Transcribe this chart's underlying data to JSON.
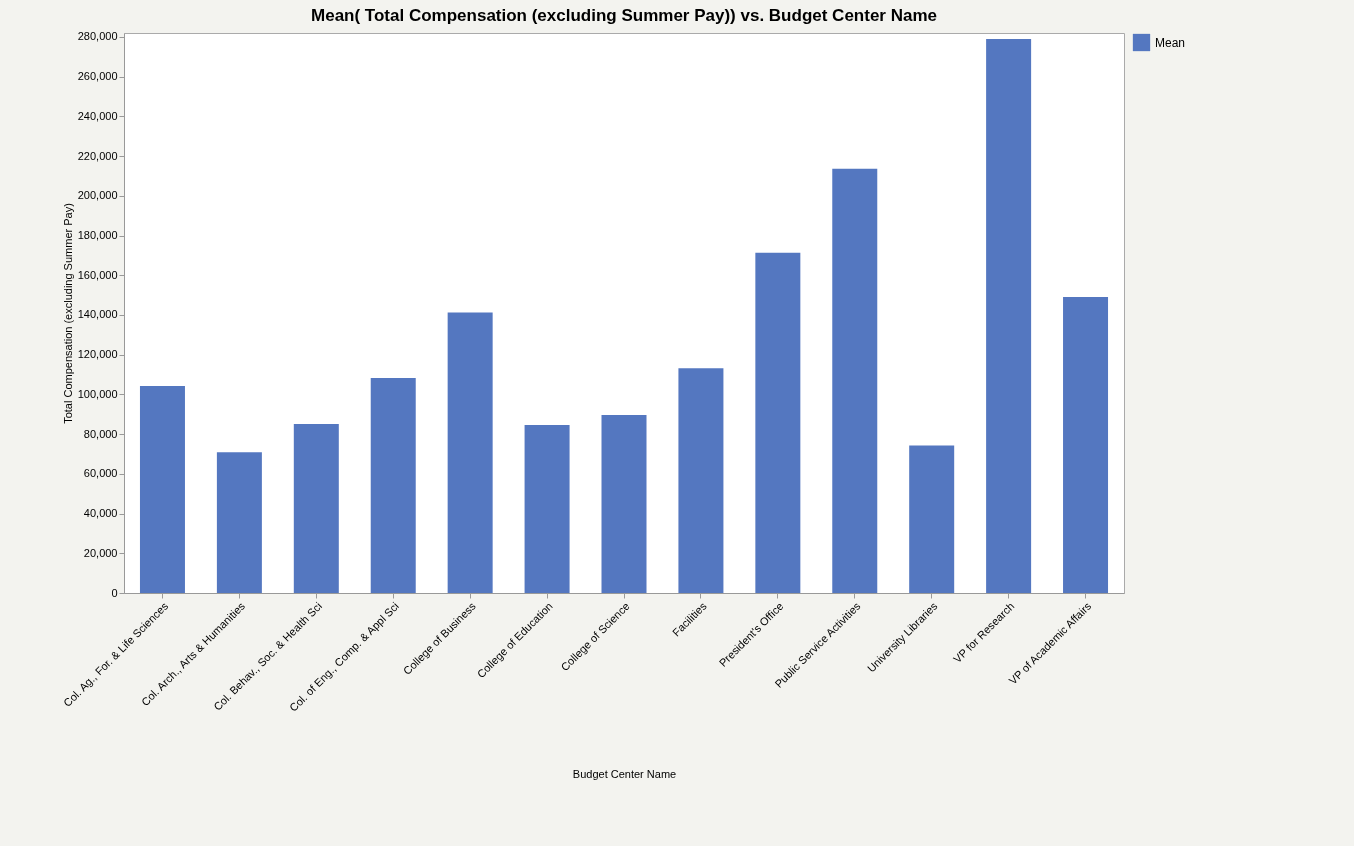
{
  "chart_data": {
    "type": "bar",
    "title": "Mean( Total Compensation (excluding Summer Pay)) vs. Budget Center Name",
    "xlabel": "Budget Center Name",
    "ylabel": "Total Compensation (excluding Summer Pay)",
    "categories": [
      "Col. Ag., For. & Life Sciences",
      "Col. Arch., Arts & Humanities",
      "Col. Behav., Soc. & Health Sci",
      "Col. of Eng., Comp. & Appl Sci",
      "College of Business",
      "College of Education",
      "College of Science",
      "Facilities",
      "President's Office",
      "Public Service Activities",
      "University Libraries",
      "VP for Research",
      "VP of Academic Affairs"
    ],
    "series": [
      {
        "name": "Mean",
        "color": "#5477c0",
        "values": [
          104300,
          70900,
          85100,
          108300,
          141200,
          84600,
          89600,
          113200,
          171300,
          213600,
          74300,
          279000,
          149100
        ]
      }
    ],
    "ylim": [
      0,
      282000
    ],
    "yticks": [
      {
        "value": 0,
        "label": "0"
      },
      {
        "value": 20000,
        "label": "20,000"
      },
      {
        "value": 40000,
        "label": "40,000"
      },
      {
        "value": 60000,
        "label": "60,000"
      },
      {
        "value": 80000,
        "label": "80,000"
      },
      {
        "value": 100000,
        "label": "100,000"
      },
      {
        "value": 120000,
        "label": "120,000"
      },
      {
        "value": 140000,
        "label": "140,000"
      },
      {
        "value": 160000,
        "label": "160,000"
      },
      {
        "value": 180000,
        "label": "180,000"
      },
      {
        "value": 200000,
        "label": "200,000"
      },
      {
        "value": 220000,
        "label": "220,000"
      },
      {
        "value": 240000,
        "label": "240,000"
      },
      {
        "value": 260000,
        "label": "260,000"
      },
      {
        "value": 280000,
        "label": "280,000"
      }
    ],
    "grid": false,
    "legend": "top right"
  }
}
